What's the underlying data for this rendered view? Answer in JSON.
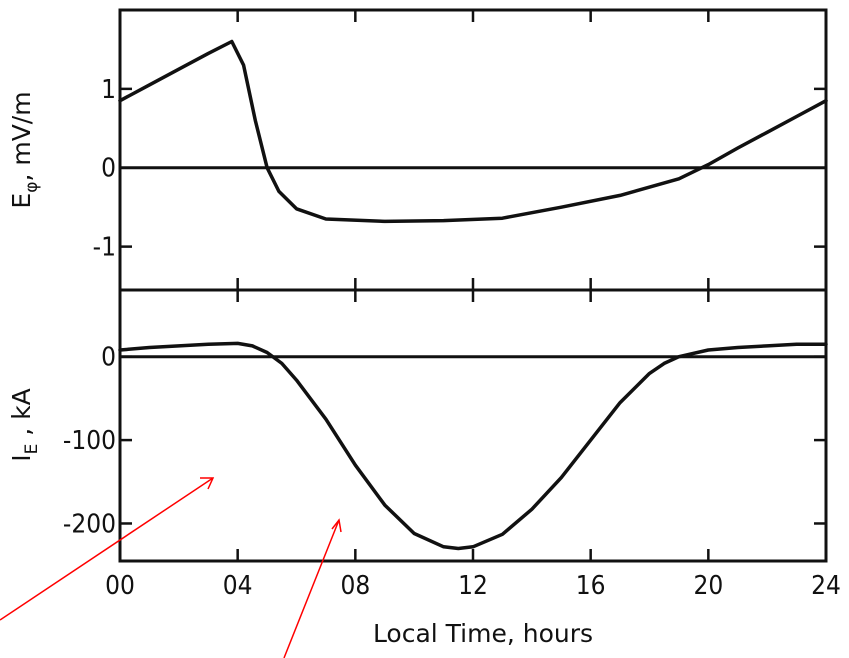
{
  "chart_data": [
    {
      "type": "line",
      "panel": "top",
      "ylabel": "E",
      "ylabel_subscript": "φ",
      "ylabel_unit": ", mV/m",
      "ylim": [
        -1.55,
        2.0
      ],
      "yticks": [
        1,
        0,
        -1
      ],
      "ytick_labels": [
        "1",
        "0",
        "-1"
      ],
      "xlim": [
        0,
        24
      ],
      "x": [
        0,
        1,
        2,
        3,
        3.8,
        4.2,
        4.6,
        5.0,
        5.4,
        6.0,
        7.0,
        9.0,
        11.0,
        13.0,
        15.0,
        17.0,
        19.0,
        20.0,
        21.0,
        22.0,
        23.0,
        24.0
      ],
      "values": [
        0.85,
        1.05,
        1.25,
        1.45,
        1.6,
        1.3,
        0.6,
        0.0,
        -0.3,
        -0.52,
        -0.65,
        -0.68,
        -0.67,
        -0.64,
        -0.5,
        -0.35,
        -0.14,
        0.04,
        0.25,
        0.45,
        0.65,
        0.85
      ],
      "zero_line": true
    },
    {
      "type": "line",
      "panel": "bottom",
      "ylabel": "I",
      "ylabel_subscript": "E",
      "ylabel_unit": " ,  kA",
      "ylim": [
        -245,
        80
      ],
      "yticks": [
        0,
        -100,
        -200
      ],
      "ytick_labels": [
        "0",
        "-100",
        "-200"
      ],
      "xlim": [
        0,
        24
      ],
      "xticks": [
        0,
        4,
        8,
        12,
        16,
        20,
        24
      ],
      "xtick_labels": [
        "00",
        "04",
        "08",
        "12",
        "16",
        "20",
        "24"
      ],
      "xlabel": "Local Time, hours",
      "x": [
        0,
        1,
        2,
        3,
        4,
        4.5,
        5,
        5.5,
        6,
        7,
        8,
        9,
        10,
        11,
        11.5,
        12,
        13,
        14,
        15,
        16,
        17,
        18,
        18.5,
        19,
        20,
        21,
        22,
        23,
        24
      ],
      "values": [
        8,
        11,
        13,
        15,
        16,
        13,
        5,
        -8,
        -28,
        -75,
        -130,
        -178,
        -212,
        -228,
        -230,
        -228,
        -213,
        -183,
        -145,
        -100,
        -55,
        -20,
        -8,
        0,
        8,
        11,
        13,
        15,
        15
      ],
      "zero_line": true
    }
  ],
  "annotations": {
    "arrow_color": "#ff0000",
    "arrows": [
      "red-arrow-left",
      "red-arrow-right"
    ]
  }
}
